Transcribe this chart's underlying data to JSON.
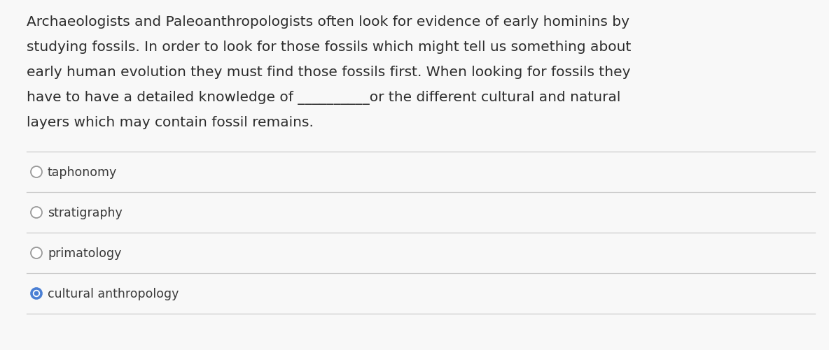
{
  "background_color": "#f8f8f8",
  "question_text_lines": [
    "Archaeologists and Paleoanthropologists often look for evidence of early hominins by",
    "studying fossils. In order to look for those fossils which might tell us something about",
    "early human evolution they must find those fossils first. When looking for fossils they",
    "have to have a detailed knowledge of __________or the different cultural and natural",
    "layers which may contain fossil remains."
  ],
  "options": [
    {
      "label": "taphonomy",
      "selected": false
    },
    {
      "label": "stratigraphy",
      "selected": false
    },
    {
      "label": "primatology",
      "selected": false
    },
    {
      "label": "cultural anthropology",
      "selected": true
    }
  ],
  "text_color": "#2d2d2d",
  "option_text_color": "#3a3a3a",
  "divider_color": "#cccccc",
  "circle_edge_color": "#999999",
  "selected_circle_color": "#4a7fd4",
  "text_fontsize": 14.5,
  "option_fontsize": 12.5,
  "fig_width": 11.84,
  "fig_height": 5.02,
  "dpi": 100
}
